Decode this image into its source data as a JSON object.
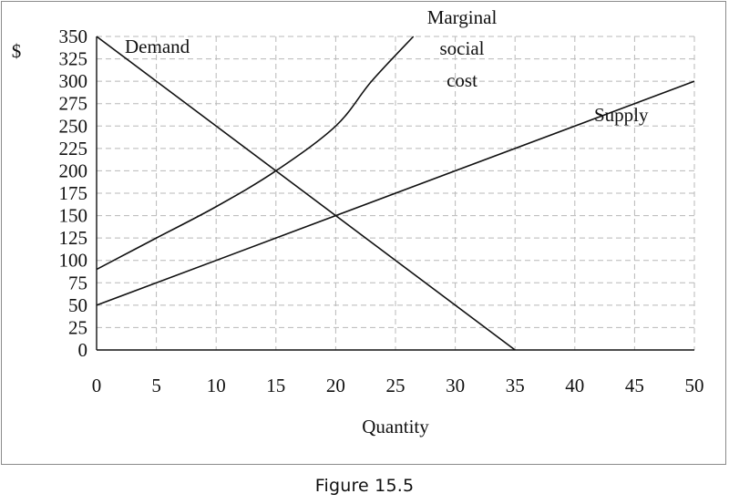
{
  "chart_data": {
    "type": "line",
    "title": "",
    "xlabel": "Quantity",
    "ylabel": "$",
    "xlim": [
      0,
      50
    ],
    "ylim": [
      0,
      350
    ],
    "x_ticks": [
      0,
      5,
      10,
      15,
      20,
      25,
      30,
      35,
      40,
      45,
      50
    ],
    "y_ticks": [
      0,
      25,
      50,
      75,
      100,
      125,
      150,
      175,
      200,
      225,
      250,
      275,
      300,
      325,
      350
    ],
    "grid": true,
    "series": [
      {
        "name": "Demand",
        "x": [
          0,
          35
        ],
        "y": [
          350,
          0
        ]
      },
      {
        "name": "Supply",
        "x": [
          0,
          50
        ],
        "y": [
          50,
          300
        ]
      },
      {
        "name": "Marginal social cost",
        "x": [
          0,
          5,
          10,
          15,
          20,
          23,
          26.5
        ],
        "y": [
          90,
          125,
          160,
          200,
          250,
          300,
          350
        ]
      }
    ],
    "annotations": {
      "demand": "Demand",
      "supply": "Supply",
      "msc_line1": "Marginal",
      "msc_line2": "social",
      "msc_line3": "cost"
    }
  },
  "caption": "Figure 15.5"
}
